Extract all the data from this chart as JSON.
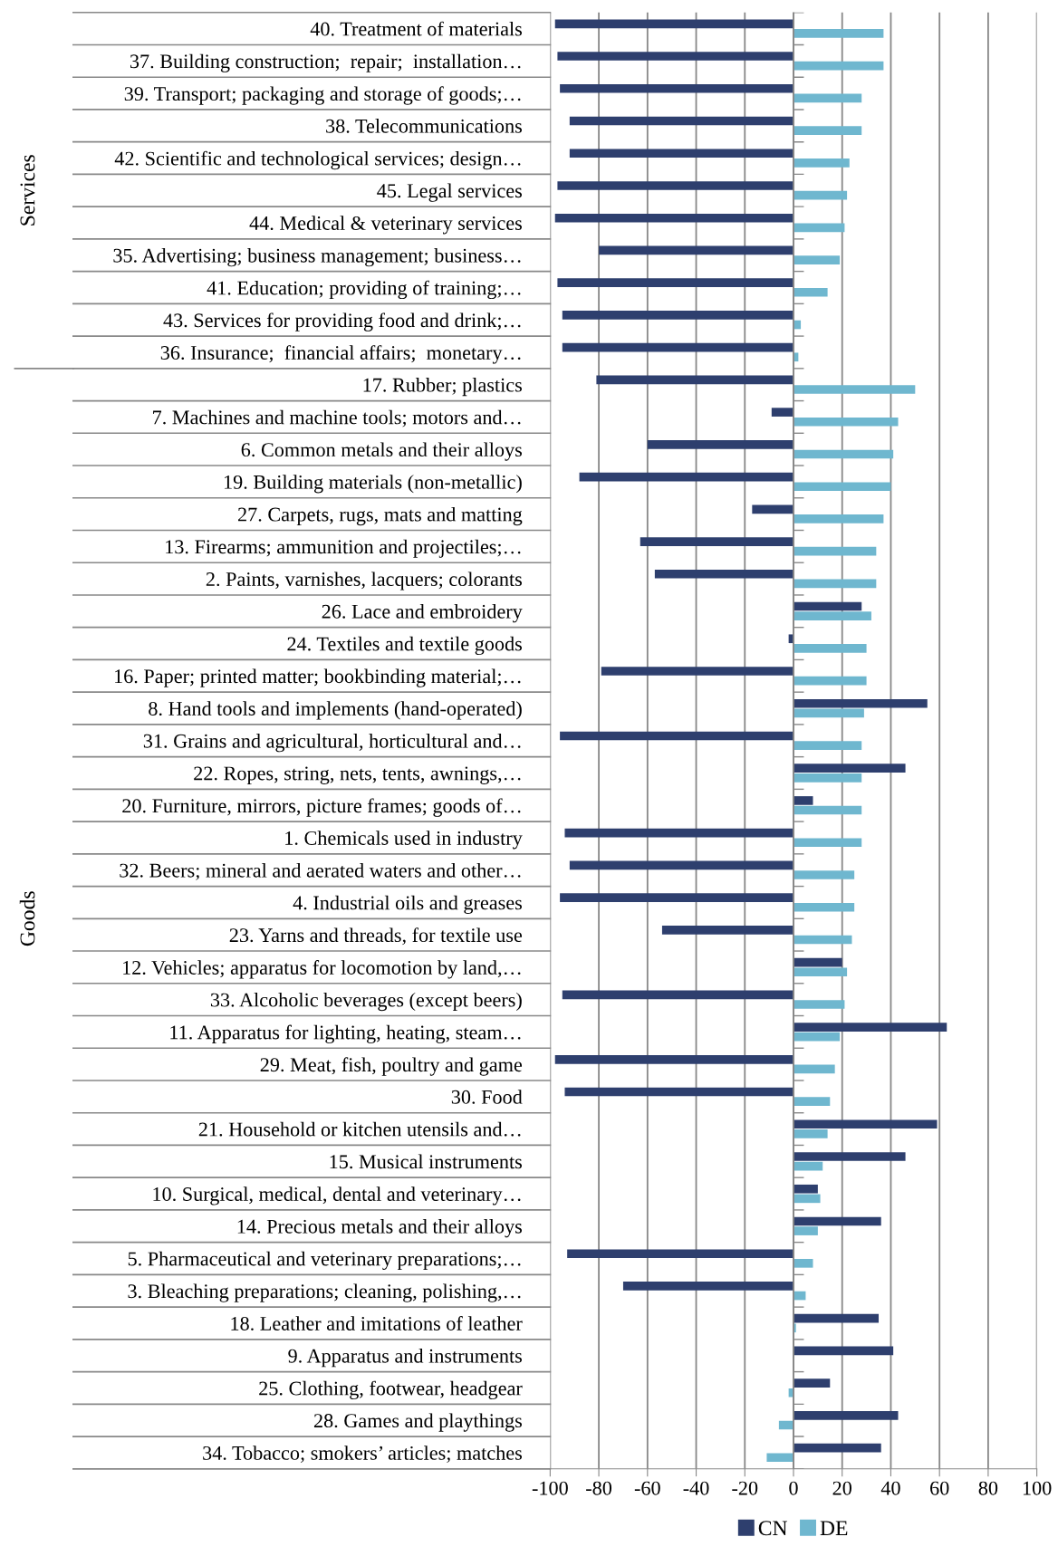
{
  "chart_data": {
    "type": "bar",
    "orientation": "horizontal",
    "categories": [
      "40. Treatment of materials",
      "37. Building construction;  repair;  installation…",
      "39. Transport; packaging and storage of goods;…",
      "38. Telecommunications",
      "42. Scientific and technological services; design…",
      "45. Legal services",
      "44. Medical & veterinary services",
      "35. Advertising; business management; business…",
      "41. Education; providing of training;…",
      "43. Services for providing food and drink;…",
      "36. Insurance;  financial affairs;  monetary…",
      "17. Rubber; plastics",
      "7. Machines and machine tools; motors and…",
      "6. Common metals and their alloys",
      "19. Building materials (non-metallic)",
      "27. Carpets, rugs, mats and matting",
      "13. Firearms; ammunition and projectiles;…",
      "2. Paints, varnishes, lacquers; colorants",
      "26. Lace and embroidery",
      "24. Textiles and textile goods",
      "16. Paper; printed matter; bookbinding material;…",
      "8. Hand tools and implements (hand-operated)",
      "31. Grains and agricultural, horticultural and…",
      "22. Ropes, string, nets, tents, awnings,…",
      "20. Furniture, mirrors, picture frames; goods of…",
      "1. Chemicals used in industry",
      "32. Beers; mineral and aerated waters and other…",
      "4. Industrial oils and greases",
      "23. Yarns and threads, for textile use",
      "12. Vehicles; apparatus for locomotion by land,…",
      "33. Alcoholic beverages (except beers)",
      "11. Apparatus for lighting, heating, steam…",
      "29. Meat, fish, poultry and game",
      "30. Food",
      "21. Household or kitchen utensils and…",
      "15. Musical instruments",
      "10. Surgical, medical, dental and veterinary…",
      "14. Precious metals and their alloys",
      "5. Pharmaceutical and veterinary preparations;…",
      "3. Bleaching preparations; cleaning, polishing,…",
      "18. Leather and imitations of leather",
      "9. Apparatus and instruments",
      "25. Clothing, footwear, headgear",
      "28. Games and playthings",
      "34. Tobacco; smokers’ articles; matches"
    ],
    "series": [
      {
        "name": "CN",
        "color": "#2e3f6e",
        "values": [
          -98,
          -97,
          -96,
          -92,
          -92,
          -97,
          -98,
          -80,
          -97,
          -95,
          -95,
          -81,
          -9,
          -60,
          -88,
          -17,
          -63,
          -57,
          28,
          -2,
          -79,
          55,
          -96,
          46,
          8,
          -94,
          -92,
          -96,
          -54,
          20,
          -95,
          63,
          -98,
          -94,
          59,
          46,
          10,
          36,
          -93,
          -70,
          35,
          41,
          15,
          43,
          36
        ]
      },
      {
        "name": "DE",
        "color": "#6fb7cf",
        "values": [
          37,
          37,
          28,
          28,
          23,
          22,
          21,
          19,
          14,
          3,
          2,
          50,
          43,
          41,
          40,
          37,
          34,
          34,
          32,
          30,
          30,
          29,
          28,
          28,
          28,
          28,
          25,
          25,
          24,
          22,
          21,
          19,
          17,
          15,
          14,
          12,
          11,
          10,
          8,
          5,
          1,
          0,
          -2,
          -6,
          -11
        ]
      }
    ],
    "xlim": [
      -100,
      100
    ],
    "xticks": [
      -100,
      -80,
      -60,
      -40,
      -20,
      0,
      20,
      40,
      60,
      80,
      100
    ],
    "grid": "x",
    "legend": "bottom",
    "annotations": [
      "Services",
      "Goods"
    ]
  }
}
